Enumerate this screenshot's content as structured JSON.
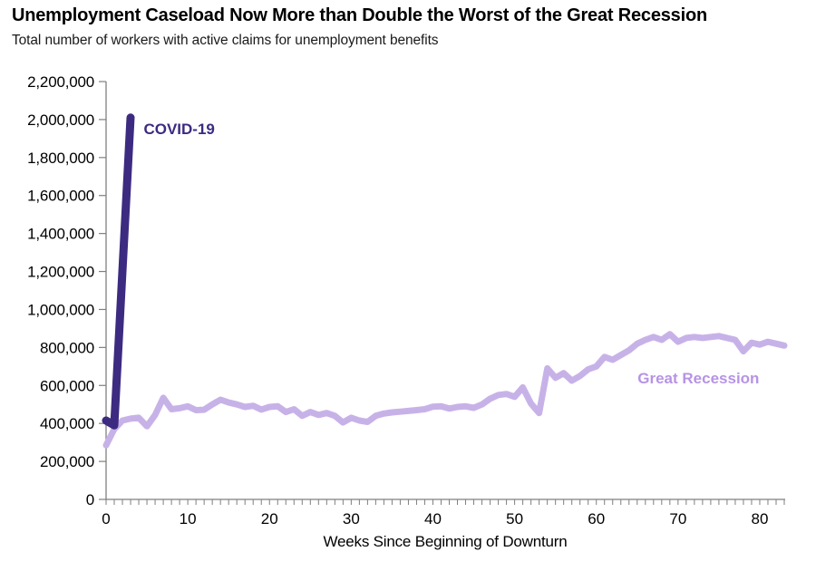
{
  "header": {
    "title": "Unemployment Caseload Now More than Double the Worst of the Great Recession",
    "subtitle": "Total number of workers with active claims for unemployment benefits"
  },
  "chart_data": {
    "type": "line",
    "title": "Unemployment Caseload Now More than Double the Worst of the Great Recession",
    "subtitle": "Total number of workers with active claims for unemployment benefits",
    "xlabel": "Weeks Since Beginning of Downturn",
    "ylabel": "",
    "xlim": [
      0,
      83
    ],
    "ylim": [
      0,
      2200000
    ],
    "grid": false,
    "legend_position": "inline-annotations",
    "axis_color": "#7f7f7f",
    "tick_label_color": "#000000",
    "x_major_ticks": [
      0,
      10,
      20,
      30,
      40,
      50,
      60,
      70,
      80
    ],
    "x_tick_labels": [
      "0",
      "10",
      "20",
      "30",
      "40",
      "50",
      "60",
      "70",
      "80"
    ],
    "x_minor_tick_interval": 1,
    "y_tick_interval": 200000,
    "y_tick_labels": [
      "0",
      "200,000",
      "400,000",
      "600,000",
      "800,000",
      "1,000,000",
      "1,200,000",
      "1,400,000",
      "1,600,000",
      "1,800,000",
      "2,000,000",
      "2,200,000"
    ],
    "series": [
      {
        "name": "Great Recession",
        "color": "#c7b2e8",
        "line_width": 7,
        "x_start": 0,
        "x_step": 1,
        "values": [
          285000,
          370000,
          415000,
          425000,
          430000,
          385000,
          445000,
          535000,
          475000,
          480000,
          490000,
          470000,
          472000,
          500000,
          525000,
          510000,
          500000,
          487000,
          493000,
          473000,
          487000,
          490000,
          460000,
          475000,
          440000,
          460000,
          445000,
          455000,
          440000,
          405000,
          430000,
          415000,
          408000,
          440000,
          452000,
          458000,
          462000,
          466000,
          470000,
          475000,
          488000,
          490000,
          478000,
          487000,
          490000,
          482000,
          500000,
          530000,
          550000,
          555000,
          540000,
          590000,
          505000,
          455000,
          690000,
          640000,
          665000,
          625000,
          650000,
          685000,
          700000,
          750000,
          735000,
          760000,
          785000,
          820000,
          840000,
          855000,
          840000,
          870000,
          830000,
          850000,
          855000,
          850000,
          855000,
          860000,
          850000,
          840000,
          780000,
          825000,
          815000,
          830000,
          820000,
          810000
        ],
        "label": {
          "text": "Great Recession",
          "color": "#b793e6",
          "x_week": 72.5,
          "value": 640000,
          "anchor": "middle"
        }
      },
      {
        "name": "COVID-19",
        "color": "#3c2b80",
        "line_width": 9,
        "x": [
          0,
          1,
          2,
          3
        ],
        "values": [
          415000,
          390000,
          1200000,
          2010000
        ],
        "label": {
          "text": "COVID-19",
          "color": "#3c2b80",
          "x_week": 4.6,
          "value": 1952000,
          "anchor": "start"
        }
      }
    ]
  }
}
